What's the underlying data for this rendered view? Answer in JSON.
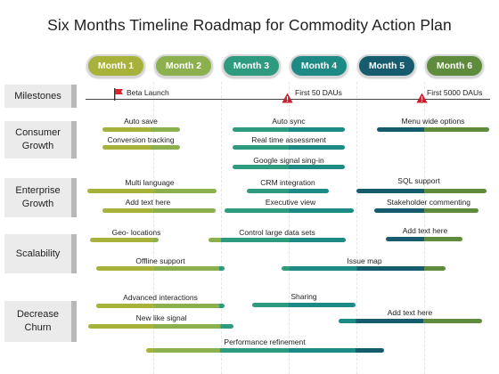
{
  "title": "Six Months Timeline Roadmap for Commodity Action Plan",
  "months": [
    {
      "label": "Month 1",
      "color": "#a7b23a"
    },
    {
      "label": "Month 2",
      "color": "#8cb04d"
    },
    {
      "label": "Month 3",
      "color": "#2e9a7e"
    },
    {
      "label": "Month 4",
      "color": "#1e8a86"
    },
    {
      "label": "Month 5",
      "color": "#175c6e"
    },
    {
      "label": "Month 6",
      "color": "#5e8c3c"
    }
  ],
  "categories": {
    "milestones": "Milestones",
    "consumer": "Consumer Growth",
    "enterprise": "Enterprise Growth",
    "scalability": "Scalability",
    "churn": "Decrease Churn"
  },
  "milestones": {
    "beta": "Beta Launch",
    "first50": "First  50 DAUs",
    "first5000": "First  5000 DAUs"
  },
  "tasks": {
    "auto_save": "Auto save",
    "conversion_tracking": "Conversion tracking",
    "auto_sync": "Auto sync",
    "real_time_assessment": "Real time assessment",
    "google_signal": "Google signal sing-in",
    "menu_wide": "Menu wide options",
    "multi_language": "Multi language",
    "add_text_1": "Add text here",
    "crm": "CRM integration",
    "executive_view": "Executive view",
    "sql": "SQL support",
    "stakeholder": "Stakeholder commenting",
    "geo": "Geo- locations",
    "control_data": "Control large data sets",
    "add_text_2": "Add text here",
    "offline": "Offline support",
    "issue_map": "Issue map",
    "advanced": "Advanced interactions",
    "new_like": "New like signal",
    "sharing": "Sharing",
    "add_text_3": "Add text here",
    "performance": "Performance refinement"
  }
}
